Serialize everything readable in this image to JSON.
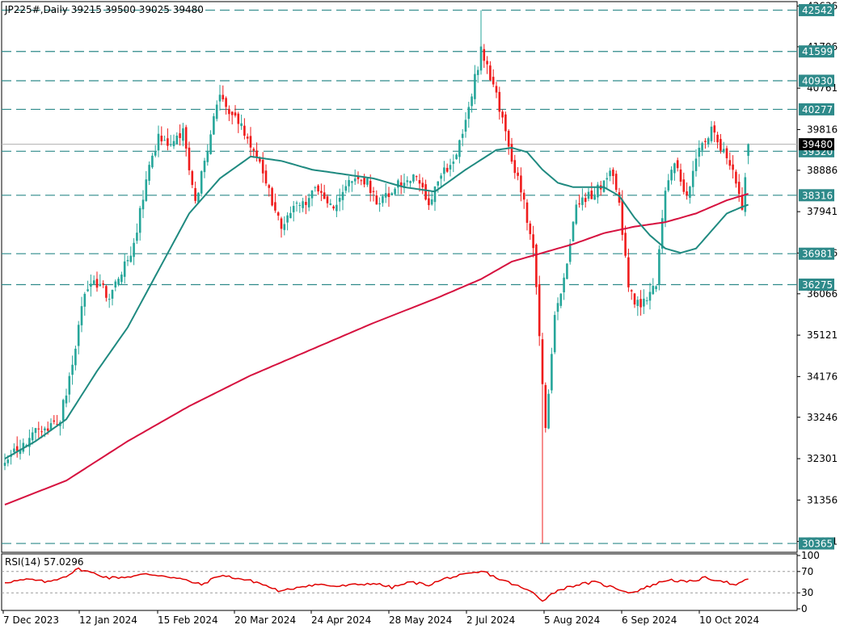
{
  "header": {
    "symbol_line": "JP225#,Daily  39215 39500 39025 39480"
  },
  "rsi_panel": {
    "label": "RSI(14) 57.0296",
    "levels": [
      "100",
      "70",
      "30",
      "0"
    ]
  },
  "colors": {
    "background": "#ffffff",
    "bull": "#26a69a",
    "bear": "#ef1c1c",
    "ma_fast": "#1f8a80",
    "ma_slow": "#d6113f",
    "level_line": "#2e8a8a",
    "rsi_line": "#e00000",
    "tag_bg": "#2e8a8a",
    "current_tag_bg": "#000000"
  },
  "chart_data": {
    "type": "candlestick",
    "title": "JP225#,Daily",
    "ohlc_header": {
      "open": 39215,
      "high": 39500,
      "low": 39025,
      "close": 39480
    },
    "y_axis_ticks": [
      42636,
      41706,
      40761,
      39816,
      38886,
      37941,
      36996,
      36066,
      35121,
      34176,
      33246,
      32301,
      31356,
      30411
    ],
    "ylim": [
      30200,
      42700
    ],
    "x_axis_labels": [
      "7 Dec 2023",
      "12 Jan 2024",
      "15 Feb 2024",
      "20 Mar 2024",
      "24 Apr 2024",
      "28 May 2024",
      "2 Jul 2024",
      "5 Aug 2024",
      "6 Sep 2024",
      "10 Oct 2024"
    ],
    "horizontal_levels": [
      42542,
      41599,
      40930,
      40277,
      39320,
      38316,
      36981,
      36275,
      30365
    ],
    "current_price": 39480,
    "close_anchors": [
      [
        0,
        32300
      ],
      [
        5,
        32600
      ],
      [
        10,
        32900
      ],
      [
        15,
        33000
      ],
      [
        18,
        33200
      ],
      [
        22,
        34500
      ],
      [
        26,
        36100
      ],
      [
        30,
        36300
      ],
      [
        34,
        36000
      ],
      [
        38,
        36500
      ],
      [
        42,
        37200
      ],
      [
        46,
        38700
      ],
      [
        50,
        39600
      ],
      [
        54,
        39400
      ],
      [
        58,
        39800
      ],
      [
        62,
        38200
      ],
      [
        66,
        39400
      ],
      [
        70,
        40700
      ],
      [
        74,
        40100
      ],
      [
        78,
        39800
      ],
      [
        82,
        39200
      ],
      [
        86,
        38400
      ],
      [
        90,
        37500
      ],
      [
        94,
        38100
      ],
      [
        98,
        38200
      ],
      [
        102,
        38500
      ],
      [
        106,
        38000
      ],
      [
        110,
        38400
      ],
      [
        114,
        38800
      ],
      [
        118,
        38600
      ],
      [
        122,
        38100
      ],
      [
        126,
        38400
      ],
      [
        130,
        38700
      ],
      [
        134,
        38700
      ],
      [
        138,
        38200
      ],
      [
        142,
        38700
      ],
      [
        146,
        39200
      ],
      [
        149,
        39700
      ],
      [
        152,
        40700
      ],
      [
        155,
        41600
      ],
      [
        157,
        41200
      ],
      [
        160,
        40600
      ],
      [
        163,
        39800
      ],
      [
        166,
        38900
      ],
      [
        169,
        38100
      ],
      [
        172,
        37200
      ],
      [
        175,
        34000
      ],
      [
        176,
        33000
      ],
      [
        179,
        35500
      ],
      [
        182,
        36500
      ],
      [
        186,
        38000
      ],
      [
        190,
        38300
      ],
      [
        194,
        38500
      ],
      [
        197,
        39000
      ],
      [
        200,
        38200
      ],
      [
        203,
        36200
      ],
      [
        206,
        35800
      ],
      [
        209,
        36000
      ],
      [
        212,
        36300
      ],
      [
        215,
        38500
      ],
      [
        218,
        39100
      ],
      [
        222,
        38300
      ],
      [
        226,
        39500
      ],
      [
        230,
        39800
      ],
      [
        233,
        39400
      ],
      [
        236,
        39000
      ],
      [
        238,
        38600
      ],
      [
        240,
        37900
      ],
      [
        242,
        39480
      ]
    ],
    "ma_fast_anchors": [
      [
        0,
        32300
      ],
      [
        10,
        32700
      ],
      [
        20,
        33200
      ],
      [
        30,
        34300
      ],
      [
        40,
        35300
      ],
      [
        50,
        36600
      ],
      [
        60,
        37900
      ],
      [
        70,
        38700
      ],
      [
        80,
        39200
      ],
      [
        90,
        39100
      ],
      [
        100,
        38900
      ],
      [
        110,
        38800
      ],
      [
        120,
        38700
      ],
      [
        130,
        38500
      ],
      [
        140,
        38400
      ],
      [
        150,
        38900
      ],
      [
        160,
        39350
      ],
      [
        165,
        39400
      ],
      [
        170,
        39300
      ],
      [
        175,
        38900
      ],
      [
        180,
        38600
      ],
      [
        185,
        38500
      ],
      [
        190,
        38500
      ],
      [
        195,
        38500
      ],
      [
        200,
        38300
      ],
      [
        205,
        37800
      ],
      [
        210,
        37400
      ],
      [
        215,
        37100
      ],
      [
        220,
        37000
      ],
      [
        225,
        37100
      ],
      [
        230,
        37500
      ],
      [
        235,
        37900
      ],
      [
        240,
        38050
      ],
      [
        242,
        38100
      ]
    ],
    "ma_slow_anchors": [
      [
        0,
        31250
      ],
      [
        20,
        31800
      ],
      [
        40,
        32700
      ],
      [
        60,
        33500
      ],
      [
        80,
        34200
      ],
      [
        100,
        34800
      ],
      [
        120,
        35400
      ],
      [
        140,
        35950
      ],
      [
        155,
        36400
      ],
      [
        165,
        36800
      ],
      [
        175,
        37000
      ],
      [
        185,
        37200
      ],
      [
        195,
        37450
      ],
      [
        205,
        37600
      ],
      [
        215,
        37700
      ],
      [
        225,
        37900
      ],
      [
        235,
        38200
      ],
      [
        242,
        38350
      ]
    ],
    "rsi": {
      "period": 14,
      "last": 57.0296,
      "levels": [
        70,
        30
      ],
      "ylim": [
        0,
        100
      ],
      "anchors": [
        [
          0,
          50
        ],
        [
          8,
          55
        ],
        [
          14,
          50
        ],
        [
          20,
          62
        ],
        [
          24,
          75
        ],
        [
          28,
          68
        ],
        [
          34,
          58
        ],
        [
          40,
          60
        ],
        [
          46,
          65
        ],
        [
          52,
          62
        ],
        [
          58,
          55
        ],
        [
          64,
          45
        ],
        [
          70,
          63
        ],
        [
          76,
          57
        ],
        [
          82,
          50
        ],
        [
          90,
          32
        ],
        [
          96,
          42
        ],
        [
          102,
          46
        ],
        [
          108,
          42
        ],
        [
          114,
          45
        ],
        [
          120,
          48
        ],
        [
          126,
          40
        ],
        [
          132,
          50
        ],
        [
          138,
          45
        ],
        [
          144,
          58
        ],
        [
          150,
          64
        ],
        [
          156,
          70
        ],
        [
          160,
          58
        ],
        [
          166,
          45
        ],
        [
          172,
          30
        ],
        [
          175,
          16
        ],
        [
          180,
          35
        ],
        [
          186,
          45
        ],
        [
          192,
          50
        ],
        [
          198,
          40
        ],
        [
          204,
          30
        ],
        [
          210,
          43
        ],
        [
          216,
          55
        ],
        [
          222,
          50
        ],
        [
          228,
          58
        ],
        [
          234,
          52
        ],
        [
          238,
          43
        ],
        [
          242,
          57
        ]
      ]
    }
  }
}
